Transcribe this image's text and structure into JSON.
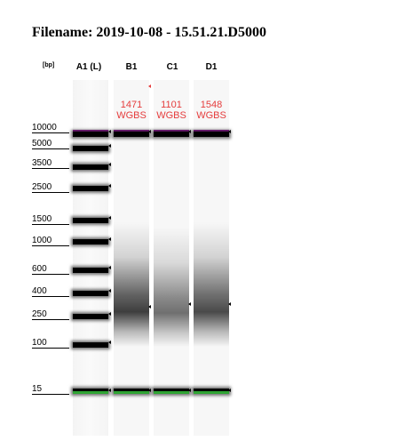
{
  "filename": "Filename: 2019-10-08 - 15.51.21.D5000",
  "unit_label": "[bp]",
  "lanes": [
    {
      "id": "A1 (L)"
    },
    {
      "id": "B1",
      "peak_size": "1471",
      "peak_label": "WGBS"
    },
    {
      "id": "C1",
      "peak_size": "1101",
      "peak_label": "WGBS"
    },
    {
      "id": "D1",
      "peak_size": "1548",
      "peak_label": "WGBS"
    }
  ],
  "ladder": [
    "10000",
    "5000",
    "3500",
    "2500",
    "1500",
    "1000",
    "600",
    "400",
    "250",
    "100",
    "15"
  ],
  "colors": {
    "upper_marker": "#a12ba8",
    "lower_marker": "#2fa534",
    "peak_annotation": "#e53c3c"
  }
}
